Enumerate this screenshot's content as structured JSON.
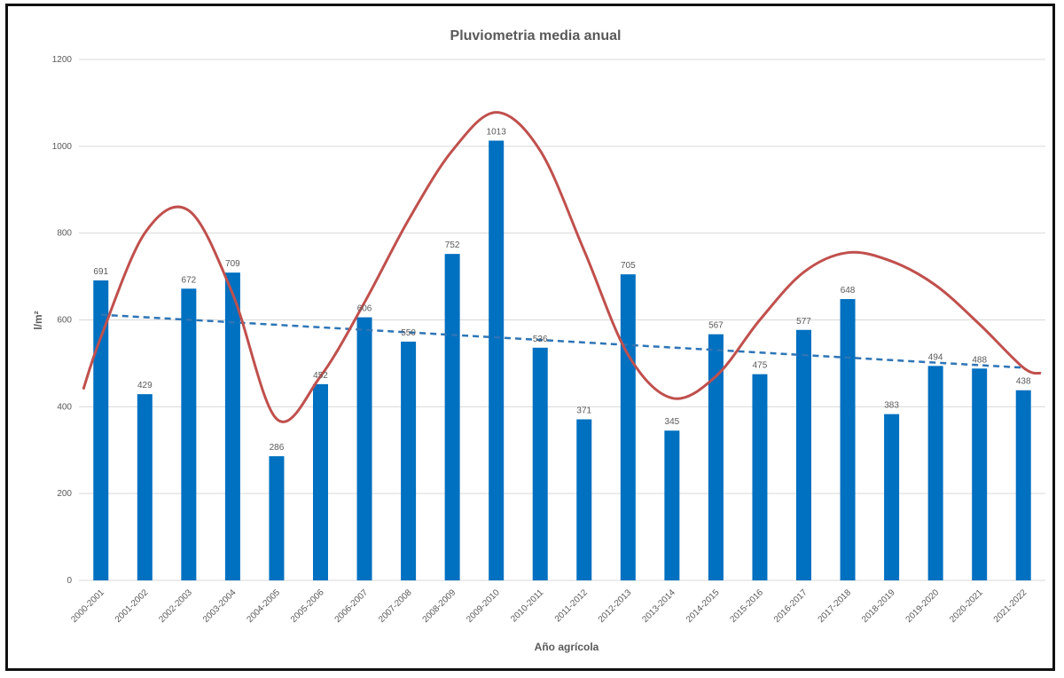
{
  "chart_data": {
    "type": "bar",
    "title": "Pluviometria media anual",
    "xlabel": "Año agrícola",
    "ylabel": "l/m²",
    "ylim": [
      0,
      1200
    ],
    "yticks": [
      0,
      200,
      400,
      600,
      800,
      1000,
      1200
    ],
    "grid": true,
    "categories": [
      "2000-2001",
      "2001-2002",
      "2002-2003",
      "2003-2004",
      "2004-2005",
      "2005-2006",
      "2006-2007",
      "2007-2008",
      "2008-2009",
      "2009-2010",
      "2010-2011",
      "2011-2012",
      "2012-2013",
      "2013-2014",
      "2014-2015",
      "2015-2016",
      "2016-2017",
      "2017-2018",
      "2018-2019",
      "2019-2020",
      "2020-2021",
      "2021-2022"
    ],
    "values": [
      691,
      429,
      672,
      709,
      286,
      452,
      606,
      550,
      752,
      1013,
      536,
      371,
      705,
      345,
      567,
      475,
      577,
      648,
      383,
      494,
      488,
      438
    ],
    "data_labels": [
      "691",
      "429",
      "672",
      "709",
      "286",
      "452",
      "606",
      "550",
      "752",
      "1013",
      "536",
      "371",
      "705",
      "345",
      "567",
      "475",
      "577",
      "648",
      "383",
      "494",
      "488",
      "438"
    ],
    "trendline": {
      "style": "dashed",
      "start": 612,
      "end": 490,
      "color": "#2E75B6"
    },
    "smooth_curve": {
      "color": "#C0504D",
      "points": [
        [
          -0.4,
          440
        ],
        [
          0,
          560
        ],
        [
          1,
          800
        ],
        [
          2,
          852
        ],
        [
          3,
          660
        ],
        [
          4,
          372
        ],
        [
          5,
          470
        ],
        [
          6,
          640
        ],
        [
          7,
          830
        ],
        [
          8,
          990
        ],
        [
          9,
          1078
        ],
        [
          10,
          990
        ],
        [
          11,
          760
        ],
        [
          12,
          520
        ],
        [
          13,
          420
        ],
        [
          14,
          470
        ],
        [
          15,
          600
        ],
        [
          16,
          710
        ],
        [
          17,
          755
        ],
        [
          18,
          735
        ],
        [
          19,
          680
        ],
        [
          20,
          590
        ],
        [
          21,
          490
        ],
        [
          21.4,
          477
        ]
      ]
    },
    "colors": {
      "bar": "#0070C0",
      "curve": "#C0504D",
      "trend": "#2E75B6",
      "grid": "#D9D9D9",
      "text": "#595959"
    }
  }
}
